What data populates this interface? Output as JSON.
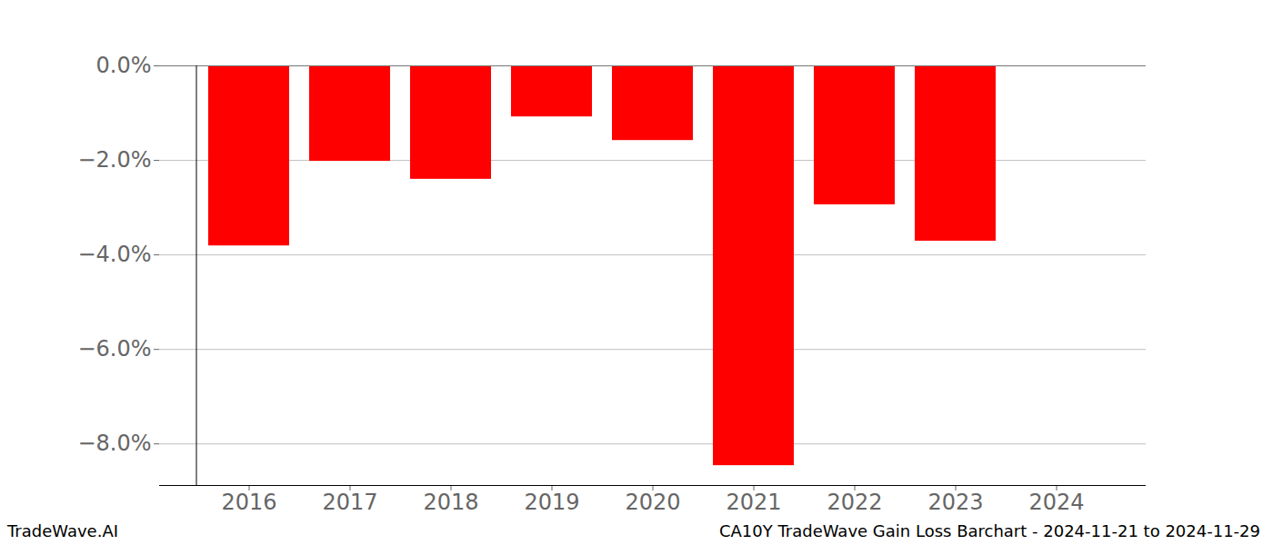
{
  "chart_data": {
    "type": "bar",
    "title": "CA10Y TradeWave Gain Loss Barchart - 2024-11-21 to 2024-11-29",
    "source": "TradeWave.AI",
    "categories": [
      "2016",
      "2017",
      "2018",
      "2019",
      "2020",
      "2021",
      "2022",
      "2023",
      "2024"
    ],
    "values": [
      -3.81,
      -2.02,
      -2.4,
      -1.08,
      -1.58,
      -8.46,
      -2.94,
      -3.71,
      null
    ],
    "color": "#ff0000",
    "ylim": [
      -8.88,
      0
    ],
    "yticks": [
      {
        "value": 0,
        "label": "0.0%"
      },
      {
        "value": -2,
        "label": "−2.0%"
      },
      {
        "value": -4,
        "label": "−4.0%"
      },
      {
        "value": -6,
        "label": "−6.0%"
      },
      {
        "value": -8,
        "label": "−8.0%"
      }
    ],
    "grid": true
  }
}
